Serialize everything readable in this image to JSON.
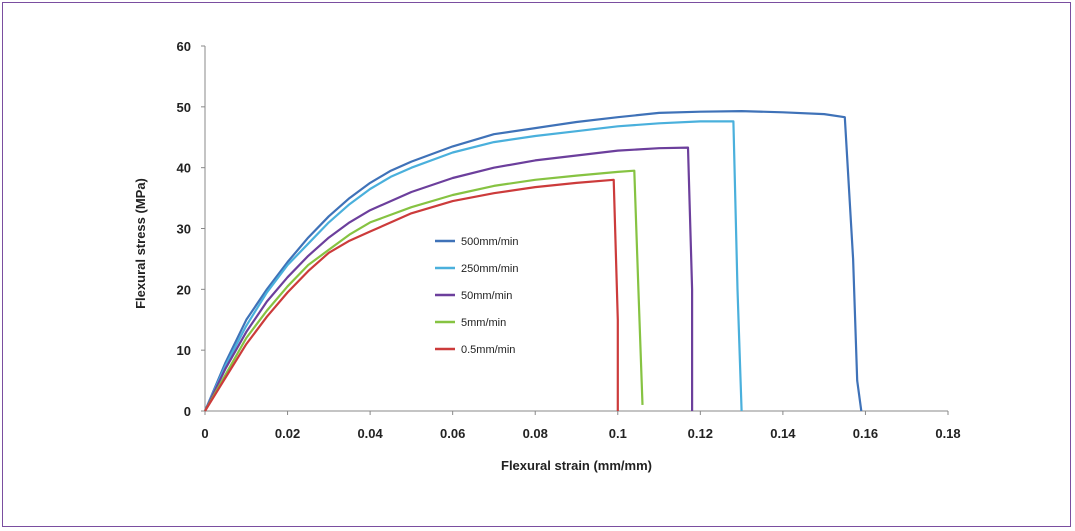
{
  "chart_data": {
    "type": "line",
    "xlabel": "Flexural strain (mm/mm)",
    "ylabel": "Flexural stress (MPa)",
    "xlim": [
      0,
      0.18
    ],
    "ylim": [
      0,
      60
    ],
    "x_ticks": [
      "0",
      "0.02",
      "0.04",
      "0.06",
      "0.08",
      "0.1",
      "0.12",
      "0.14",
      "0.16",
      "0.18"
    ],
    "y_ticks": [
      "0",
      "10",
      "20",
      "30",
      "40",
      "50",
      "60"
    ],
    "grid": false,
    "legend_position": "center-left",
    "series": [
      {
        "name": "500mm/min",
        "color": "#3f72b8",
        "x": [
          0,
          0.005,
          0.01,
          0.015,
          0.02,
          0.025,
          0.03,
          0.035,
          0.04,
          0.045,
          0.05,
          0.06,
          0.07,
          0.08,
          0.09,
          0.1,
          0.11,
          0.12,
          0.13,
          0.14,
          0.15,
          0.155,
          0.157,
          0.158,
          0.159
        ],
        "y": [
          0,
          8,
          15,
          20,
          24.5,
          28.5,
          32,
          35,
          37.5,
          39.5,
          41,
          43.5,
          45.5,
          46.5,
          47.5,
          48.3,
          49,
          49.2,
          49.3,
          49.1,
          48.8,
          48.3,
          25,
          5,
          0
        ]
      },
      {
        "name": "250mm/min",
        "color": "#4ab0dc",
        "x": [
          0,
          0.005,
          0.01,
          0.015,
          0.02,
          0.025,
          0.03,
          0.035,
          0.04,
          0.045,
          0.05,
          0.06,
          0.07,
          0.08,
          0.09,
          0.1,
          0.11,
          0.12,
          0.128,
          0.129,
          0.13
        ],
        "y": [
          0,
          7.5,
          14,
          19.5,
          24,
          27.5,
          31,
          34,
          36.5,
          38.5,
          40,
          42.5,
          44.2,
          45.2,
          46,
          46.8,
          47.3,
          47.6,
          47.6,
          20,
          0
        ]
      },
      {
        "name": "50mm/min",
        "color": "#6c3f9c",
        "x": [
          0,
          0.005,
          0.01,
          0.015,
          0.02,
          0.025,
          0.03,
          0.035,
          0.04,
          0.05,
          0.06,
          0.07,
          0.08,
          0.09,
          0.1,
          0.11,
          0.117,
          0.118,
          0.118
        ],
        "y": [
          0,
          7,
          13,
          18,
          22,
          25.5,
          28.5,
          31,
          33,
          36,
          38.3,
          40,
          41.2,
          42,
          42.8,
          43.2,
          43.3,
          20,
          0
        ]
      },
      {
        "name": "5mm/min",
        "color": "#86c342",
        "x": [
          0,
          0.005,
          0.01,
          0.015,
          0.02,
          0.025,
          0.03,
          0.035,
          0.04,
          0.05,
          0.06,
          0.07,
          0.08,
          0.09,
          0.1,
          0.104,
          0.105,
          0.106
        ],
        "y": [
          0,
          6,
          12,
          16.5,
          20.5,
          24,
          26.5,
          29,
          31,
          33.5,
          35.5,
          37,
          38,
          38.7,
          39.3,
          39.5,
          20,
          1
        ]
      },
      {
        "name": "0.5mm/min",
        "color": "#cc3b3b",
        "x": [
          0,
          0.005,
          0.01,
          0.015,
          0.02,
          0.025,
          0.03,
          0.035,
          0.04,
          0.045,
          0.05,
          0.06,
          0.07,
          0.08,
          0.09,
          0.099,
          0.1,
          0.1
        ],
        "y": [
          0,
          5.5,
          11,
          15.5,
          19.5,
          23,
          26,
          28,
          29.5,
          31,
          32.5,
          34.5,
          35.8,
          36.8,
          37.5,
          38,
          15,
          0
        ]
      }
    ]
  }
}
